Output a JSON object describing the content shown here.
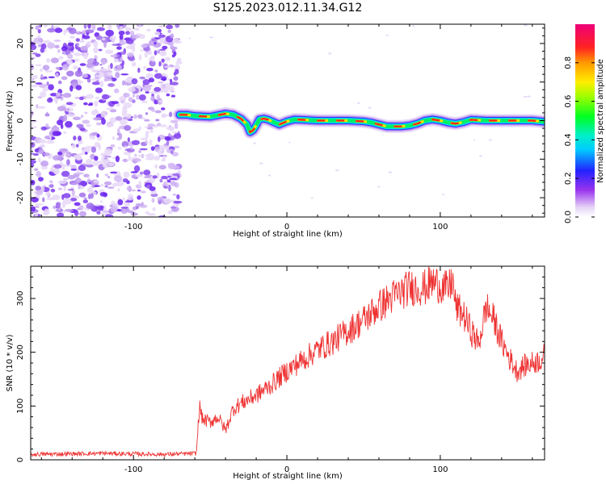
{
  "title": "S125.2023.012.11.34.G12",
  "colors": {
    "snr_line": "#ee3333",
    "background": "#ffffff"
  },
  "chart_data": [
    {
      "type": "heatmap",
      "xlabel": "Height of straight line (km)",
      "ylabel": "Frequency (Hz)",
      "xlim": [
        -167,
        168
      ],
      "ylim": [
        -25,
        25
      ],
      "xticks": [
        -100,
        0,
        100
      ],
      "yticks": [
        -20,
        -10,
        0,
        10,
        20
      ],
      "colorbar": {
        "label": "Normalized spectral amplitude",
        "range": [
          0,
          1
        ],
        "ticks": [
          "0.0",
          "0.2",
          "0.4",
          "0.6",
          "0.8"
        ],
        "colormap": "white-purple-blue-cyan-green-yellow-red-magenta"
      },
      "noise_region_x": [
        -167,
        -70
      ],
      "ridge": {
        "x": [
          -70,
          -65,
          -60,
          -50,
          -40,
          -35,
          -30,
          -26,
          -24,
          -22,
          -20,
          -18,
          -15,
          -12,
          -8,
          -5,
          0,
          5,
          10,
          20,
          30,
          40,
          50,
          55,
          60,
          65,
          70,
          75,
          80,
          85,
          90,
          95,
          100,
          105,
          110,
          115,
          120,
          130,
          140,
          150,
          160,
          168
        ],
        "y": [
          1.5,
          1.5,
          1.2,
          1.0,
          1.8,
          1.5,
          0.5,
          -1.0,
          -3.0,
          -2.5,
          -1.2,
          0.3,
          0.5,
          0.2,
          -0.5,
          -1.0,
          -0.2,
          0.3,
          0.2,
          0.0,
          0.0,
          0.0,
          -0.2,
          -0.5,
          -1.0,
          -1.5,
          -1.5,
          -1.5,
          -1.3,
          -0.8,
          0.0,
          0.3,
          0.0,
          -0.5,
          -0.8,
          -0.4,
          0.2,
          0.0,
          0.0,
          0.0,
          0.0,
          -0.3
        ]
      }
    },
    {
      "type": "line",
      "xlabel": "Height of straight line (km)",
      "ylabel": "SNR (10 * v/v)",
      "xlim": [
        -167,
        168
      ],
      "ylim": [
        0,
        360
      ],
      "xticks": [
        -100,
        0,
        100
      ],
      "yticks": [
        0,
        100,
        200,
        300
      ],
      "series": [
        {
          "x": [
            -167,
            -120,
            -80,
            -59,
            -57,
            -55,
            -50,
            -45,
            -40,
            -35,
            -30,
            -20,
            -10,
            0,
            10,
            20,
            30,
            40,
            50,
            60,
            70,
            80,
            90,
            95,
            100,
            105,
            108,
            110,
            115,
            120,
            125,
            130,
            135,
            140,
            145,
            150,
            155,
            160,
            165,
            168
          ],
          "y": [
            10,
            12,
            10,
            12,
            100,
            75,
            70,
            80,
            55,
            95,
            105,
            120,
            140,
            165,
            185,
            205,
            220,
            240,
            260,
            285,
            305,
            320,
            320,
            330,
            325,
            315,
            335,
            285,
            270,
            240,
            215,
            285,
            260,
            220,
            190,
            165,
            175,
            180,
            185,
            195
          ]
        }
      ]
    }
  ]
}
